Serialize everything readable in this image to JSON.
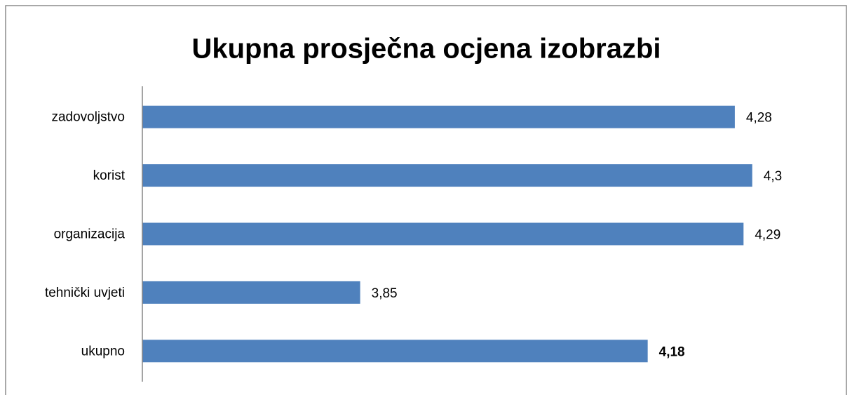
{
  "chart_data": {
    "type": "hbar",
    "title": "Ukupna prosječna ocjena izobrazbi",
    "categories": [
      "zadovoljstvo",
      "korist",
      "organizacija",
      "tehnički uvjeti",
      "ukupno"
    ],
    "values": [
      4.28,
      4.3,
      4.29,
      3.85,
      4.18
    ],
    "value_labels": [
      "4,28",
      "4,3",
      "4,29",
      "3,85",
      "4,18"
    ],
    "value_label_bold": [
      false,
      false,
      false,
      false,
      true
    ],
    "color": "#4f81bd",
    "xlim": [
      3.6,
      4.4
    ]
  }
}
